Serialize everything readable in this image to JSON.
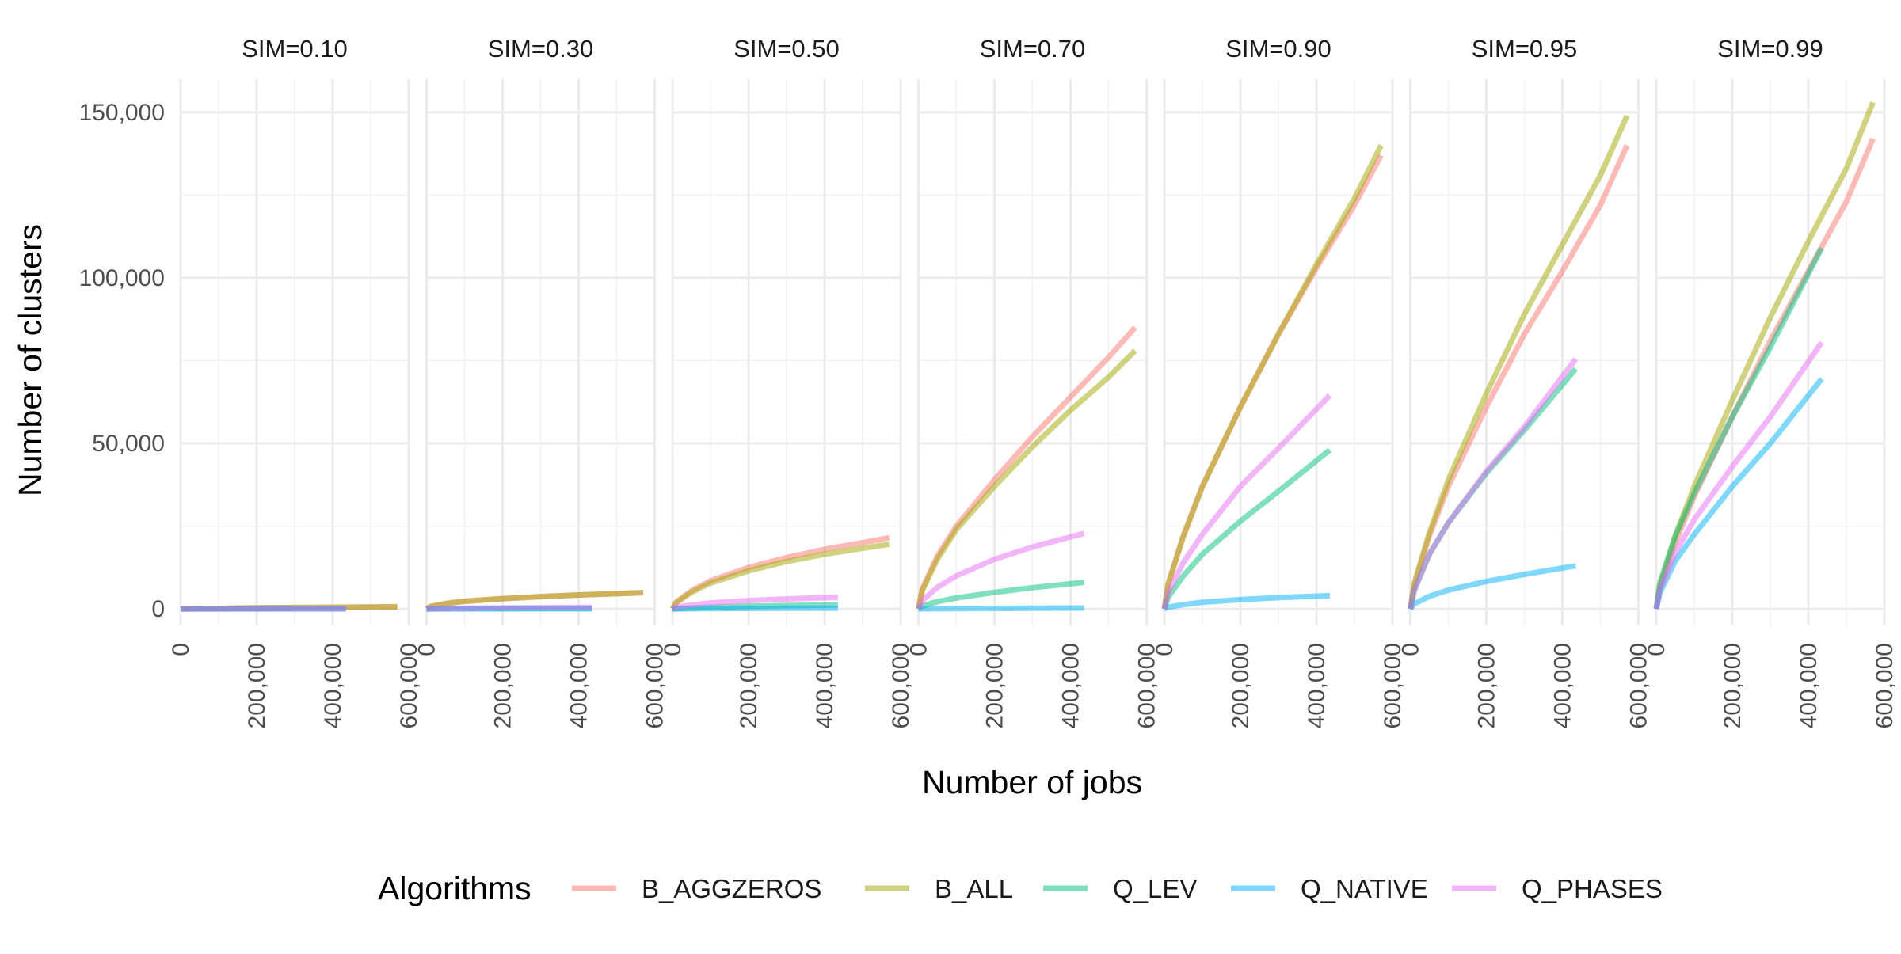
{
  "chart_data": {
    "type": "line",
    "facet_variable": "SIM",
    "xlabel": "Number of jobs",
    "ylabel": "Number of clusters",
    "xlim": [
      0,
      600000
    ],
    "ylim": [
      -5000,
      160000
    ],
    "x_ticks": [
      0,
      200000,
      400000,
      600000
    ],
    "x_tick_labels": [
      "0",
      "200,000",
      "400,000",
      "600,000"
    ],
    "y_ticks": [
      0,
      50000,
      100000,
      150000
    ],
    "y_tick_labels": [
      "0",
      "50,000",
      "100,000",
      "150,000"
    ],
    "grid": true,
    "legend": {
      "title": "Algorithms",
      "position": "bottom",
      "entries": [
        "B_AGGZEROS",
        "B_ALL",
        "Q_LEV",
        "Q_NATIVE",
        "Q_PHASES"
      ]
    },
    "colors": {
      "B_AGGZEROS": "#F8766D",
      "B_ALL": "#A3A500",
      "Q_LEV": "#00BF7D",
      "Q_NATIVE": "#00B0F6",
      "Q_PHASES": "#E76BF3"
    },
    "facets": [
      {
        "label": "SIM=0.10",
        "series": [
          {
            "name": "B_AGGZEROS",
            "x": [
              0,
              100000,
              200000,
              300000,
              400000,
              500000,
              570000
            ],
            "y": [
              0,
              150,
              300,
              400,
              480,
              560,
              620
            ]
          },
          {
            "name": "B_ALL",
            "x": [
              0,
              100000,
              200000,
              300000,
              400000,
              500000,
              570000
            ],
            "y": [
              0,
              150,
              300,
              400,
              480,
              560,
              620
            ]
          },
          {
            "name": "Q_LEV",
            "x": [
              0,
              100000,
              200000,
              300000,
              435000
            ],
            "y": [
              0,
              10,
              20,
              25,
              30
            ]
          },
          {
            "name": "Q_NATIVE",
            "x": [
              0,
              100000,
              200000,
              300000,
              435000
            ],
            "y": [
              0,
              5,
              8,
              10,
              12
            ]
          },
          {
            "name": "Q_PHASES",
            "x": [
              0,
              100000,
              200000,
              300000,
              435000
            ],
            "y": [
              0,
              30,
              50,
              65,
              80
            ]
          }
        ]
      },
      {
        "label": "SIM=0.30",
        "series": [
          {
            "name": "B_AGGZEROS",
            "x": [
              0,
              10000,
              50000,
              100000,
              200000,
              300000,
              400000,
              500000,
              570000
            ],
            "y": [
              0,
              700,
              1600,
              2300,
              3100,
              3700,
              4200,
              4600,
              4900
            ]
          },
          {
            "name": "B_ALL",
            "x": [
              0,
              10000,
              50000,
              100000,
              200000,
              300000,
              400000,
              500000,
              570000
            ],
            "y": [
              0,
              700,
              1600,
              2300,
              3100,
              3700,
              4200,
              4600,
              4900
            ]
          },
          {
            "name": "Q_LEV",
            "x": [
              0,
              100000,
              200000,
              300000,
              435000
            ],
            "y": [
              0,
              60,
              100,
              130,
              160
            ]
          },
          {
            "name": "Q_NATIVE",
            "x": [
              0,
              100000,
              200000,
              300000,
              435000
            ],
            "y": [
              0,
              10,
              15,
              18,
              20
            ]
          },
          {
            "name": "Q_PHASES",
            "x": [
              0,
              100000,
              200000,
              300000,
              435000
            ],
            "y": [
              0,
              200,
              300,
              380,
              450
            ]
          }
        ]
      },
      {
        "label": "SIM=0.50",
        "series": [
          {
            "name": "B_AGGZEROS",
            "x": [
              0,
              10000,
              50000,
              100000,
              200000,
              300000,
              400000,
              500000,
              570000
            ],
            "y": [
              0,
              2000,
              5500,
              8500,
              12500,
              15500,
              18000,
              20000,
              21500
            ]
          },
          {
            "name": "B_ALL",
            "x": [
              0,
              10000,
              50000,
              100000,
              200000,
              300000,
              400000,
              500000,
              570000
            ],
            "y": [
              0,
              1900,
              5000,
              7800,
              11500,
              14300,
              16500,
              18300,
              19500
            ]
          },
          {
            "name": "Q_LEV",
            "x": [
              0,
              100000,
              200000,
              300000,
              435000
            ],
            "y": [
              0,
              500,
              800,
              1000,
              1200
            ]
          },
          {
            "name": "Q_NATIVE",
            "x": [
              0,
              100000,
              200000,
              300000,
              435000
            ],
            "y": [
              0,
              100,
              150,
              180,
              200
            ]
          },
          {
            "name": "Q_PHASES",
            "x": [
              0,
              10000,
              100000,
              200000,
              300000,
              435000
            ],
            "y": [
              0,
              600,
              1800,
              2500,
              3000,
              3500
            ]
          }
        ]
      },
      {
        "label": "SIM=0.70",
        "series": [
          {
            "name": "B_AGGZEROS",
            "x": [
              0,
              10000,
              50000,
              100000,
              200000,
              300000,
              400000,
              500000,
              570000
            ],
            "y": [
              0,
              6000,
              16000,
              25000,
              39000,
              52000,
              64000,
              76000,
              85000
            ]
          },
          {
            "name": "B_ALL",
            "x": [
              0,
              10000,
              50000,
              100000,
              200000,
              300000,
              400000,
              500000,
              570000
            ],
            "y": [
              0,
              5500,
              15000,
              24000,
              37000,
              49000,
              60000,
              70000,
              78000
            ]
          },
          {
            "name": "Q_LEV",
            "x": [
              0,
              10000,
              50000,
              100000,
              200000,
              300000,
              435000
            ],
            "y": [
              0,
              800,
              2200,
              3300,
              5000,
              6400,
              8000
            ]
          },
          {
            "name": "Q_NATIVE",
            "x": [
              0,
              100000,
              200000,
              300000,
              435000
            ],
            "y": [
              0,
              100,
              150,
              200,
              250
            ]
          },
          {
            "name": "Q_PHASES",
            "x": [
              0,
              10000,
              50000,
              100000,
              200000,
              300000,
              435000
            ],
            "y": [
              0,
              2500,
              6500,
              10000,
              15000,
              18700,
              22800
            ]
          }
        ]
      },
      {
        "label": "SIM=0.90",
        "series": [
          {
            "name": "B_AGGZEROS",
            "x": [
              0,
              10000,
              50000,
              100000,
              200000,
              300000,
              400000,
              500000,
              570000
            ],
            "y": [
              0,
              7500,
              22000,
              37000,
              61000,
              83000,
              103000,
              122000,
              137000
            ]
          },
          {
            "name": "B_ALL",
            "x": [
              0,
              10000,
              50000,
              100000,
              200000,
              300000,
              400000,
              500000,
              570000
            ],
            "y": [
              0,
              7500,
              22000,
              37000,
              61000,
              83000,
              104000,
              124000,
              140000
            ]
          },
          {
            "name": "Q_LEV",
            "x": [
              0,
              10000,
              50000,
              100000,
              200000,
              300000,
              435000
            ],
            "y": [
              0,
              3500,
              10000,
              16500,
              26500,
              35500,
              48000
            ]
          },
          {
            "name": "Q_NATIVE",
            "x": [
              0,
              10000,
              50000,
              100000,
              200000,
              300000,
              435000
            ],
            "y": [
              0,
              500,
              1300,
              2000,
              2800,
              3400,
              4000
            ]
          },
          {
            "name": "Q_PHASES",
            "x": [
              0,
              10000,
              50000,
              100000,
              200000,
              300000,
              435000
            ],
            "y": [
              0,
              5000,
              14000,
              22500,
              37000,
              48500,
              64500
            ]
          }
        ]
      },
      {
        "label": "SIM=0.95",
        "series": [
          {
            "name": "B_AGGZEROS",
            "x": [
              0,
              10000,
              50000,
              100000,
              200000,
              300000,
              400000,
              500000,
              570000
            ],
            "y": [
              0,
              7000,
              22000,
              37000,
              61000,
              83000,
              102000,
              122000,
              140000
            ]
          },
          {
            "name": "B_ALL",
            "x": [
              0,
              10000,
              50000,
              100000,
              200000,
              300000,
              400000,
              500000,
              570000
            ],
            "y": [
              0,
              7500,
              23000,
              39000,
              65000,
              89000,
              110000,
              131000,
              149000
            ]
          },
          {
            "name": "Q_LEV",
            "x": [
              0,
              10000,
              50000,
              100000,
              200000,
              300000,
              435000
            ],
            "y": [
              0,
              5500,
              16500,
              26000,
              41000,
              54000,
              72500
            ]
          },
          {
            "name": "Q_NATIVE",
            "x": [
              0,
              10000,
              50000,
              100000,
              200000,
              300000,
              435000
            ],
            "y": [
              0,
              1500,
              3800,
              5700,
              8300,
              10400,
              13000
            ]
          },
          {
            "name": "Q_PHASES",
            "x": [
              0,
              10000,
              50000,
              100000,
              200000,
              300000,
              435000
            ],
            "y": [
              0,
              5500,
              16500,
              26000,
              41500,
              55000,
              75500
            ]
          }
        ]
      },
      {
        "label": "SIM=0.99",
        "series": [
          {
            "name": "B_AGGZEROS",
            "x": [
              0,
              10000,
              50000,
              100000,
              200000,
              300000,
              400000,
              500000,
              570000
            ],
            "y": [
              0,
              6500,
              20000,
              34000,
              58000,
              81000,
              102000,
              123000,
              142000
            ]
          },
          {
            "name": "B_ALL",
            "x": [
              0,
              10000,
              50000,
              100000,
              200000,
              300000,
              400000,
              500000,
              570000
            ],
            "y": [
              0,
              7000,
              22000,
              37000,
              63000,
              88000,
              111000,
              133000,
              153000
            ]
          },
          {
            "name": "Q_LEV",
            "x": [
              0,
              10000,
              50000,
              100000,
              200000,
              300000,
              435000
            ],
            "y": [
              0,
              8000,
              22000,
              35000,
              58000,
              79000,
              109000
            ]
          },
          {
            "name": "Q_NATIVE",
            "x": [
              0,
              10000,
              50000,
              100000,
              200000,
              300000,
              435000
            ],
            "y": [
              0,
              5000,
              14500,
              22500,
              37000,
              50000,
              69500
            ]
          },
          {
            "name": "Q_PHASES",
            "x": [
              0,
              10000,
              50000,
              100000,
              200000,
              300000,
              435000
            ],
            "y": [
              0,
              6000,
              17000,
              27000,
              43000,
              58000,
              80500
            ]
          }
        ]
      }
    ]
  }
}
